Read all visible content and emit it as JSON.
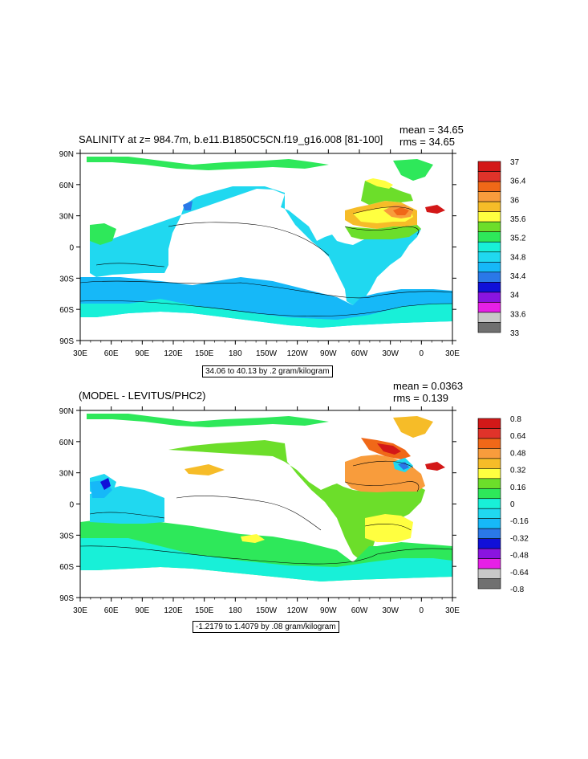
{
  "panels": [
    {
      "title": "SALINITY at z= 984.7m, b.e11.B1850C5CN.f19_g16.008 [81-100]",
      "stats": {
        "mean": "mean = 34.65",
        "rms": "rms = 34.65"
      },
      "footnote": "34.06 to 40.13 by .2 gram/kilogram",
      "colorbar": {
        "labels": [
          "37",
          "36.4",
          "36",
          "35.6",
          "35.2",
          "34.8",
          "34.4",
          "34",
          "33.6",
          "33"
        ],
        "colors": [
          "#d31818",
          "#e0332a",
          "#f06818",
          "#f89c3c",
          "#f6bc28",
          "#ffff40",
          "#6cde2a",
          "#2ee85a",
          "#18f0d8",
          "#20d8f0",
          "#16b8f8",
          "#2a78e8",
          "#1010d8",
          "#8a14e0",
          "#e620e6",
          "#c8c8c8",
          "#707070"
        ]
      }
    },
    {
      "title": "(MODEL - LEVITUS/PHC2)",
      "stats": {
        "mean": "mean = 0.0363",
        "rms": "rms = 0.139"
      },
      "footnote": "-1.2179 to 1.4079 by .08 gram/kilogram",
      "colorbar": {
        "labels": [
          "0.8",
          "0.64",
          "0.48",
          "0.32",
          "0.16",
          "0",
          "-0.16",
          "-0.32",
          "-0.48",
          "-0.64",
          "-0.8"
        ],
        "colors": [
          "#d31818",
          "#e0332a",
          "#f06818",
          "#f89c3c",
          "#f6bc28",
          "#ffff40",
          "#6cde2a",
          "#2ee85a",
          "#18f0d8",
          "#20d8f0",
          "#16b8f8",
          "#2a78e8",
          "#1010d8",
          "#8a14e0",
          "#e620e6",
          "#c8c8c8",
          "#707070"
        ]
      }
    }
  ],
  "axes": {
    "lat_labels": [
      "90N",
      "60N",
      "30N",
      "0",
      "30S",
      "60S",
      "90S"
    ],
    "lon_labels": [
      "30E",
      "60E",
      "90E",
      "120E",
      "150E",
      "180",
      "150W",
      "120W",
      "90W",
      "60W",
      "30W",
      "0",
      "30E"
    ]
  }
}
